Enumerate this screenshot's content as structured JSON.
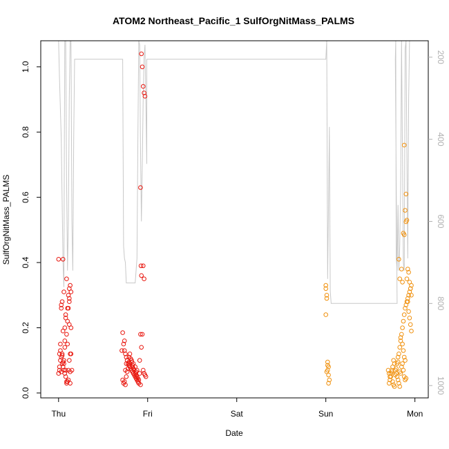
{
  "chart_data": {
    "type": "scatter",
    "title": "ATOM2 Northeast_Pacific_1 SulfOrgNitMass_PALMS",
    "xlabel": "Date",
    "ylabel": "SulfOrgNitMass_PALMS",
    "x_unit": "days",
    "xlim": [
      -0.2,
      4.15
    ],
    "ylim": [
      -0.015,
      1.08
    ],
    "x_ticks": [
      {
        "value": 0,
        "label": "Thu"
      },
      {
        "value": 1,
        "label": "Fri"
      },
      {
        "value": 2,
        "label": "Sat"
      },
      {
        "value": 3,
        "label": "Sun"
      },
      {
        "value": 4,
        "label": "Mon"
      }
    ],
    "y_ticks": [
      0.0,
      0.2,
      0.4,
      0.6,
      0.8,
      1.0
    ],
    "y_tick_labels": [
      "0.0",
      "0.2",
      "0.4",
      "0.6",
      "0.8",
      "1.0"
    ],
    "y2_reversed": true,
    "y2lim": [
      160,
      1030
    ],
    "y2_ticks": [
      200,
      400,
      600,
      800,
      1000
    ],
    "y2_tick_labels": [
      "200",
      "400",
      "600",
      "800",
      "1000"
    ],
    "colors": {
      "red_series": "#e8150d",
      "orange_series": "#f0900c",
      "pressure_line": "#c8c8c8",
      "axis": "#000000",
      "right_axis": "#b0b0b0"
    },
    "series": [
      {
        "color": "red",
        "points": [
          [
            0.0,
            0.41
          ],
          [
            0.03,
            0.27
          ],
          [
            0.02,
            0.15
          ],
          [
            0.04,
            0.12
          ],
          [
            0.05,
            0.41
          ],
          [
            0.06,
            0.1
          ],
          [
            0.07,
            0.2
          ],
          [
            0.08,
            0.24
          ],
          [
            0.09,
            0.35
          ],
          [
            0.1,
            0.22
          ],
          [
            0.11,
            0.3
          ],
          [
            0.12,
            0.32
          ],
          [
            0.13,
            0.33
          ],
          [
            0.14,
            0.2
          ],
          [
            0.01,
            0.12
          ],
          [
            0.02,
            0.13
          ],
          [
            0.03,
            0.11
          ],
          [
            0.04,
            0.09
          ],
          [
            0.05,
            0.08
          ],
          [
            0.06,
            0.07
          ],
          [
            0.07,
            0.06
          ],
          [
            0.08,
            0.05
          ],
          [
            0.09,
            0.03
          ],
          [
            0.1,
            0.035
          ],
          [
            0.11,
            0.07
          ],
          [
            0.12,
            0.1
          ],
          [
            0.13,
            0.12
          ],
          [
            0.14,
            0.12
          ],
          [
            0.15,
            0.07
          ],
          [
            0.0,
            0.06
          ],
          [
            0.01,
            0.08
          ],
          [
            0.03,
            0.065
          ],
          [
            0.05,
            0.095
          ],
          [
            0.07,
            0.14
          ],
          [
            0.09,
            0.18
          ],
          [
            0.1,
            0.26
          ],
          [
            0.11,
            0.26
          ],
          [
            0.12,
            0.28
          ],
          [
            0.13,
            0.03
          ],
          [
            0.02,
            0.1
          ],
          [
            0.04,
            0.115
          ],
          [
            0.06,
            0.09
          ],
          [
            0.08,
            0.07
          ],
          [
            0.1,
            0.15
          ],
          [
            0.12,
            0.21
          ],
          [
            0.03,
            0.26
          ],
          [
            0.04,
            0.28
          ],
          [
            0.06,
            0.31
          ],
          [
            0.07,
            0.16
          ],
          [
            0.09,
            0.035
          ],
          [
            0.11,
            0.04
          ],
          [
            0.13,
            0.065
          ],
          [
            0.01,
            0.07
          ],
          [
            0.05,
            0.19
          ],
          [
            0.08,
            0.23
          ],
          [
            0.12,
            0.29
          ],
          [
            0.14,
            0.31
          ],
          [
            0.72,
            0.185
          ],
          [
            0.73,
            0.15
          ],
          [
            0.74,
            0.13
          ],
          [
            0.75,
            0.12
          ],
          [
            0.76,
            0.11
          ],
          [
            0.77,
            0.1
          ],
          [
            0.78,
            0.09
          ],
          [
            0.79,
            0.085
          ],
          [
            0.8,
            0.08
          ],
          [
            0.81,
            0.075
          ],
          [
            0.82,
            0.07
          ],
          [
            0.83,
            0.065
          ],
          [
            0.84,
            0.06
          ],
          [
            0.85,
            0.055
          ],
          [
            0.86,
            0.05
          ],
          [
            0.87,
            0.045
          ],
          [
            0.88,
            0.04
          ],
          [
            0.89,
            0.035
          ],
          [
            0.9,
            0.03
          ],
          [
            0.91,
            0.1
          ],
          [
            0.92,
            0.63
          ],
          [
            0.93,
            1.04
          ],
          [
            0.94,
            1.0
          ],
          [
            0.95,
            0.94
          ],
          [
            0.96,
            0.92
          ],
          [
            0.97,
            0.91
          ],
          [
            0.925,
            0.39
          ],
          [
            0.93,
            0.36
          ],
          [
            0.95,
            0.39
          ],
          [
            0.96,
            0.35
          ],
          [
            0.94,
            0.18
          ],
          [
            0.92,
            0.18
          ],
          [
            0.72,
            0.04
          ],
          [
            0.73,
            0.03
          ],
          [
            0.74,
            0.035
          ],
          [
            0.75,
            0.025
          ],
          [
            0.76,
            0.05
          ],
          [
            0.77,
            0.065
          ],
          [
            0.78,
            0.09
          ],
          [
            0.79,
            0.11
          ],
          [
            0.8,
            0.12
          ],
          [
            0.81,
            0.105
          ],
          [
            0.82,
            0.095
          ],
          [
            0.83,
            0.085
          ],
          [
            0.84,
            0.075
          ],
          [
            0.85,
            0.07
          ],
          [
            0.86,
            0.06
          ],
          [
            0.87,
            0.055
          ],
          [
            0.88,
            0.05
          ],
          [
            0.89,
            0.045
          ],
          [
            0.9,
            0.04
          ],
          [
            0.91,
            0.06
          ],
          [
            0.93,
            0.14
          ],
          [
            0.95,
            0.07
          ],
          [
            0.96,
            0.06
          ],
          [
            0.97,
            0.055
          ],
          [
            0.98,
            0.05
          ],
          [
            0.71,
            0.13
          ],
          [
            0.74,
            0.16
          ],
          [
            0.76,
            0.09
          ],
          [
            0.78,
            0.075
          ],
          [
            0.8,
            0.09
          ],
          [
            0.82,
            0.1
          ],
          [
            0.84,
            0.09
          ],
          [
            0.86,
            0.08
          ],
          [
            0.88,
            0.07
          ],
          [
            0.9,
            0.03
          ],
          [
            0.92,
            0.025
          ],
          [
            0.75,
            0.07
          ],
          [
            0.79,
            0.095
          ],
          [
            0.83,
            0.08
          ],
          [
            0.87,
            0.065
          ]
        ]
      },
      {
        "color": "orange",
        "points": [
          [
            3.0,
            0.33
          ],
          [
            3.0,
            0.32
          ],
          [
            3.01,
            0.3
          ],
          [
            3.01,
            0.29
          ],
          [
            3.0,
            0.24
          ],
          [
            3.02,
            0.095
          ],
          [
            3.03,
            0.08
          ],
          [
            3.02,
            0.07
          ],
          [
            3.03,
            0.055
          ],
          [
            3.04,
            0.04
          ],
          [
            3.03,
            0.03
          ],
          [
            3.02,
            0.085
          ],
          [
            3.01,
            0.065
          ],
          [
            3.7,
            0.07
          ],
          [
            3.71,
            0.06
          ],
          [
            3.72,
            0.05
          ],
          [
            3.73,
            0.06
          ],
          [
            3.74,
            0.07
          ],
          [
            3.75,
            0.08
          ],
          [
            3.76,
            0.1
          ],
          [
            3.77,
            0.09
          ],
          [
            3.78,
            0.07
          ],
          [
            3.79,
            0.06
          ],
          [
            3.8,
            0.05
          ],
          [
            3.81,
            0.04
          ],
          [
            3.82,
            0.03
          ],
          [
            3.83,
            0.02
          ],
          [
            3.71,
            0.03
          ],
          [
            3.72,
            0.04
          ],
          [
            3.73,
            0.05
          ],
          [
            3.74,
            0.065
          ],
          [
            3.75,
            0.035
          ],
          [
            3.76,
            0.025
          ],
          [
            3.77,
            0.02
          ],
          [
            3.78,
            0.055
          ],
          [
            3.79,
            0.075
          ],
          [
            3.8,
            0.09
          ],
          [
            3.81,
            0.11
          ],
          [
            3.82,
            0.12
          ],
          [
            3.83,
            0.14
          ],
          [
            3.84,
            0.16
          ],
          [
            3.85,
            0.18
          ],
          [
            3.86,
            0.2
          ],
          [
            3.87,
            0.22
          ],
          [
            3.88,
            0.24
          ],
          [
            3.89,
            0.26
          ],
          [
            3.9,
            0.27
          ],
          [
            3.91,
            0.28
          ],
          [
            3.92,
            0.29
          ],
          [
            3.93,
            0.3
          ],
          [
            3.94,
            0.31
          ],
          [
            3.95,
            0.32
          ],
          [
            3.96,
            0.33
          ],
          [
            3.82,
            0.41
          ],
          [
            3.85,
            0.38
          ],
          [
            3.83,
            0.35
          ],
          [
            3.86,
            0.34
          ],
          [
            3.88,
            0.76
          ],
          [
            3.9,
            0.61
          ],
          [
            3.89,
            0.56
          ],
          [
            3.91,
            0.53
          ],
          [
            3.9,
            0.525
          ],
          [
            3.87,
            0.49
          ],
          [
            3.88,
            0.485
          ],
          [
            3.92,
            0.38
          ],
          [
            3.93,
            0.37
          ],
          [
            3.91,
            0.35
          ],
          [
            3.94,
            0.34
          ],
          [
            3.95,
            0.32
          ],
          [
            3.96,
            0.3
          ],
          [
            3.92,
            0.28
          ],
          [
            3.93,
            0.25
          ],
          [
            3.94,
            0.23
          ],
          [
            3.95,
            0.21
          ],
          [
            3.96,
            0.19
          ],
          [
            3.84,
            0.17
          ],
          [
            3.86,
            0.15
          ],
          [
            3.87,
            0.13
          ],
          [
            3.88,
            0.11
          ],
          [
            3.89,
            0.1
          ],
          [
            3.9,
            0.045
          ],
          [
            3.84,
            0.06
          ],
          [
            3.85,
            0.08
          ],
          [
            3.86,
            0.09
          ],
          [
            3.87,
            0.07
          ],
          [
            3.88,
            0.05
          ],
          [
            3.89,
            0.04
          ],
          [
            3.83,
            0.065
          ],
          [
            3.81,
            0.095
          ]
        ]
      }
    ],
    "pressure_line": [
      [
        0.0,
        160
      ],
      [
        0.01,
        250
      ],
      [
        0.03,
        400
      ],
      [
        0.05,
        700
      ],
      [
        0.06,
        760
      ],
      [
        0.065,
        400
      ],
      [
        0.07,
        160
      ],
      [
        0.08,
        160
      ],
      [
        0.09,
        500
      ],
      [
        0.1,
        720
      ],
      [
        0.11,
        600
      ],
      [
        0.12,
        300
      ],
      [
        0.13,
        160
      ],
      [
        0.14,
        160
      ],
      [
        0.15,
        600
      ],
      [
        0.16,
        720
      ],
      [
        0.17,
        400
      ],
      [
        0.18,
        205
      ],
      [
        0.4,
        205
      ],
      [
        0.6,
        205
      ],
      [
        0.72,
        205
      ],
      [
        0.73,
        660
      ],
      [
        0.74,
        690
      ],
      [
        0.75,
        700
      ],
      [
        0.76,
        750
      ],
      [
        0.8,
        750
      ],
      [
        0.86,
        750
      ],
      [
        0.87,
        720
      ],
      [
        0.88,
        690
      ],
      [
        0.89,
        400
      ],
      [
        0.9,
        160
      ],
      [
        0.91,
        170
      ],
      [
        0.92,
        420
      ],
      [
        0.93,
        600
      ],
      [
        0.94,
        460
      ],
      [
        0.95,
        300
      ],
      [
        0.96,
        200
      ],
      [
        0.97,
        170
      ],
      [
        0.99,
        460
      ],
      [
        0.99,
        205
      ],
      [
        1.5,
        205
      ],
      [
        2.0,
        205
      ],
      [
        2.5,
        205
      ],
      [
        3.0,
        205
      ],
      [
        3.01,
        160
      ],
      [
        3.02,
        740
      ],
      [
        3.03,
        560
      ],
      [
        3.04,
        370
      ],
      [
        3.05,
        770
      ],
      [
        3.06,
        800
      ],
      [
        3.3,
        800
      ],
      [
        3.6,
        800
      ],
      [
        3.8,
        800
      ],
      [
        3.78,
        205
      ],
      [
        3.785,
        160
      ],
      [
        3.79,
        690
      ],
      [
        3.8,
        720
      ],
      [
        3.81,
        560
      ],
      [
        3.82,
        720
      ],
      [
        3.83,
        660
      ],
      [
        3.84,
        520
      ],
      [
        3.85,
        160
      ],
      [
        3.86,
        420
      ],
      [
        3.87,
        700
      ],
      [
        3.88,
        720
      ],
      [
        3.89,
        180
      ],
      [
        3.9,
        160
      ],
      [
        3.91,
        430
      ],
      [
        3.92,
        690
      ],
      [
        3.93,
        300
      ],
      [
        3.94,
        160
      ]
    ]
  }
}
